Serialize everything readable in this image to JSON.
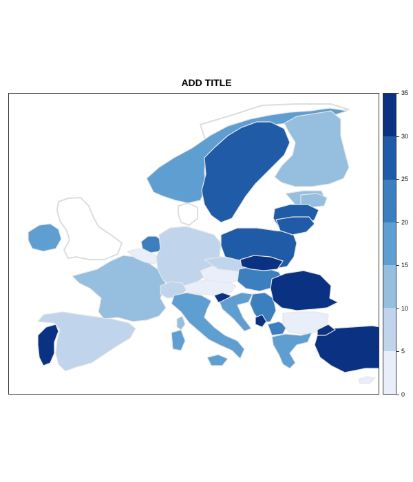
{
  "title": "ADD TITLE",
  "legend": {
    "ticks": [
      "0",
      "5",
      "10",
      "15",
      "20",
      "25",
      "30",
      "35"
    ],
    "bins": [
      {
        "min": 0,
        "max": 5,
        "color": "#e8effb"
      },
      {
        "min": 5,
        "max": 10,
        "color": "#c0d4ec"
      },
      {
        "min": 10,
        "max": 15,
        "color": "#95bedf"
      },
      {
        "min": 15,
        "max": 20,
        "color": "#5f9ed1"
      },
      {
        "min": 20,
        "max": 25,
        "color": "#3b7fbf"
      },
      {
        "min": 25,
        "max": 30,
        "color": "#1f5ba6"
      },
      {
        "min": 30,
        "max": 35,
        "color": "#0b3182"
      }
    ]
  },
  "no_data_color": "#ffffff",
  "border_color": "#e6e6e6",
  "countries_by_bin": {
    "0-5": [
      "Belgium",
      "Czechia",
      "Bulgaria",
      "Cyprus"
    ],
    "5-10": [
      "Germany",
      "Spain",
      "Slovakia",
      "Switzerland"
    ],
    "10-15": [
      "France",
      "Finland",
      "Latvia",
      "Corsica"
    ],
    "15-20": [
      "Norway",
      "Ireland",
      "Italy",
      "Greece",
      "Estonia",
      "Croatia",
      "Sardinia"
    ],
    "20-25": [
      "Netherlands",
      "Hungary",
      "North Macedonia",
      "Serbia"
    ],
    "25-30": [
      "Sweden",
      "Poland",
      "Lithuania"
    ],
    "30-35": [
      "Portugal",
      "Romania",
      "Turkey",
      "Austria",
      "Slovenia",
      "Montenegro"
    ]
  }
}
